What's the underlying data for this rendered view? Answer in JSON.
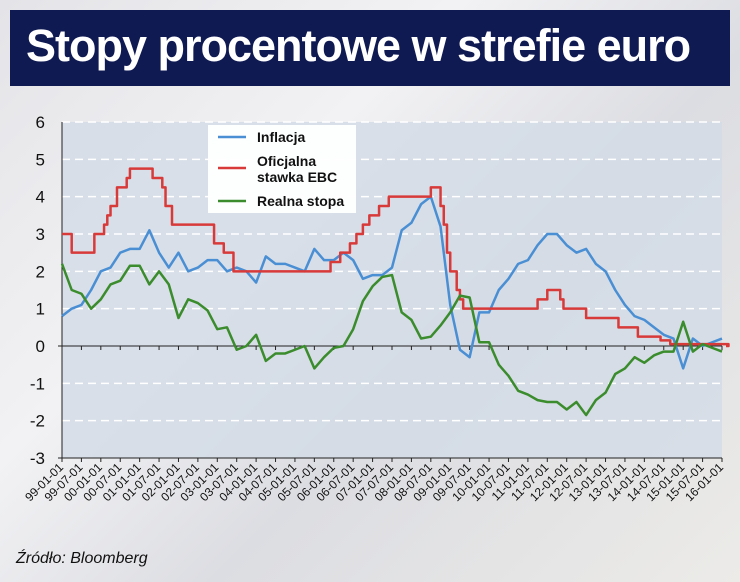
{
  "header": {
    "title": "Stopy procentowe w strefie euro"
  },
  "source": "Źródło: Bloomberg",
  "colors": {
    "inflacja": "#4a8fd4",
    "stawka": "#d83a3a",
    "realna": "#3a8c2c",
    "title_bg": "#101a52"
  },
  "chart_data": {
    "type": "line",
    "title": "Stopy procentowe w strefie euro",
    "ylim": [
      -3,
      6
    ],
    "yticks": [
      "6",
      "5",
      "4",
      "3",
      "2",
      "1",
      "0",
      "-1",
      "-2",
      "-3"
    ],
    "grid": true,
    "legend_position": "top-center",
    "xticks": [
      "99-01-01",
      "99-07-01",
      "00-01-01",
      "00-07-01",
      "01-01-01",
      "01-07-01",
      "02-01-01",
      "02-07-01",
      "03-01-01",
      "03-07-01",
      "04-01-01",
      "04-07-01",
      "05-01-01",
      "05-07-01",
      "06-01-01",
      "06-07-01",
      "07-01-01",
      "07-07-01",
      "08-01-01",
      "08-07-01",
      "09-01-01",
      "09-07-01",
      "10-01-01",
      "10-07-01",
      "11-01-01",
      "11-07-01",
      "12-01-01",
      "12-07-01",
      "13-01-01",
      "13-07-01",
      "14-01-01",
      "14-07-01",
      "15-01-01",
      "15-07-01",
      "16-01-01"
    ],
    "x_quarterly_start": "1999-01",
    "series": [
      {
        "name": "Inflacja",
        "key": "inflacja",
        "values": [
          0.8,
          1.0,
          1.1,
          1.5,
          2.0,
          2.1,
          2.5,
          2.6,
          2.6,
          3.1,
          2.5,
          2.1,
          2.5,
          2.0,
          2.1,
          2.3,
          2.3,
          2.0,
          2.1,
          2.0,
          1.7,
          2.4,
          2.2,
          2.2,
          2.1,
          2.0,
          2.6,
          2.3,
          2.3,
          2.5,
          2.3,
          1.8,
          1.9,
          1.9,
          2.1,
          3.1,
          3.3,
          3.8,
          4.0,
          3.2,
          1.1,
          -0.1,
          -0.3,
          0.9,
          0.9,
          1.5,
          1.8,
          2.2,
          2.3,
          2.7,
          3.0,
          3.0,
          2.7,
          2.5,
          2.6,
          2.2,
          2.0,
          1.5,
          1.1,
          0.8,
          0.7,
          0.5,
          0.3,
          0.2,
          -0.6,
          0.2,
          0.0,
          0.1,
          0.2
        ]
      },
      {
        "name": "Oficjalna stawka EBC",
        "key": "stawka",
        "step": true,
        "changes": [
          [
            "1999-01",
            3.0
          ],
          [
            "1999-04",
            2.5
          ],
          [
            "1999-11",
            3.0
          ],
          [
            "2000-02",
            3.25
          ],
          [
            "2000-03",
            3.5
          ],
          [
            "2000-04",
            3.75
          ],
          [
            "2000-06",
            4.25
          ],
          [
            "2000-09",
            4.5
          ],
          [
            "2000-10",
            4.75
          ],
          [
            "2001-05",
            4.5
          ],
          [
            "2001-08",
            4.25
          ],
          [
            "2001-09",
            3.75
          ],
          [
            "2001-11",
            3.25
          ],
          [
            "2002-12",
            2.75
          ],
          [
            "2003-03",
            2.5
          ],
          [
            "2003-06",
            2.0
          ],
          [
            "2005-12",
            2.25
          ],
          [
            "2006-03",
            2.5
          ],
          [
            "2006-06",
            2.75
          ],
          [
            "2006-08",
            3.0
          ],
          [
            "2006-10",
            3.25
          ],
          [
            "2006-12",
            3.5
          ],
          [
            "2007-03",
            3.75
          ],
          [
            "2007-06",
            4.0
          ],
          [
            "2008-07",
            4.25
          ],
          [
            "2008-10",
            3.75
          ],
          [
            "2008-11",
            3.25
          ],
          [
            "2008-12",
            2.5
          ],
          [
            "2009-01",
            2.0
          ],
          [
            "2009-03",
            1.5
          ],
          [
            "2009-04",
            1.25
          ],
          [
            "2009-05",
            1.0
          ],
          [
            "2011-04",
            1.25
          ],
          [
            "2011-07",
            1.5
          ],
          [
            "2011-11",
            1.25
          ],
          [
            "2011-12",
            1.0
          ],
          [
            "2012-07",
            0.75
          ],
          [
            "2013-05",
            0.5
          ],
          [
            "2013-11",
            0.25
          ],
          [
            "2014-06",
            0.15
          ],
          [
            "2014-09",
            0.05
          ],
          [
            "2016-03",
            0.0
          ]
        ]
      },
      {
        "name": "Realna stopa",
        "key": "realna",
        "values": [
          2.2,
          1.5,
          1.4,
          1.0,
          1.25,
          1.65,
          1.75,
          2.15,
          2.15,
          1.65,
          2.0,
          1.65,
          0.75,
          1.25,
          1.15,
          0.95,
          0.45,
          0.5,
          -0.1,
          0.0,
          0.3,
          -0.4,
          -0.2,
          -0.2,
          -0.1,
          0.0,
          -0.6,
          -0.3,
          -0.05,
          0.0,
          0.45,
          1.2,
          1.6,
          1.85,
          1.9,
          0.9,
          0.7,
          0.2,
          0.25,
          0.55,
          0.9,
          1.35,
          1.3,
          0.1,
          0.1,
          -0.5,
          -0.8,
          -1.2,
          -1.3,
          -1.45,
          -1.5,
          -1.5,
          -1.7,
          -1.5,
          -1.85,
          -1.45,
          -1.25,
          -0.75,
          -0.6,
          -0.3,
          -0.45,
          -0.25,
          -0.15,
          -0.15,
          0.65,
          -0.15,
          0.05,
          -0.05,
          -0.15
        ]
      }
    ],
    "legend": [
      "Inflacja",
      "Oficjalna stawka EBC",
      "Realna stopa"
    ],
    "legend_lines": [
      [
        "Inflacja"
      ],
      [
        "Oficjalna",
        "stawka EBC"
      ],
      [
        "Realna stopa"
      ]
    ]
  }
}
